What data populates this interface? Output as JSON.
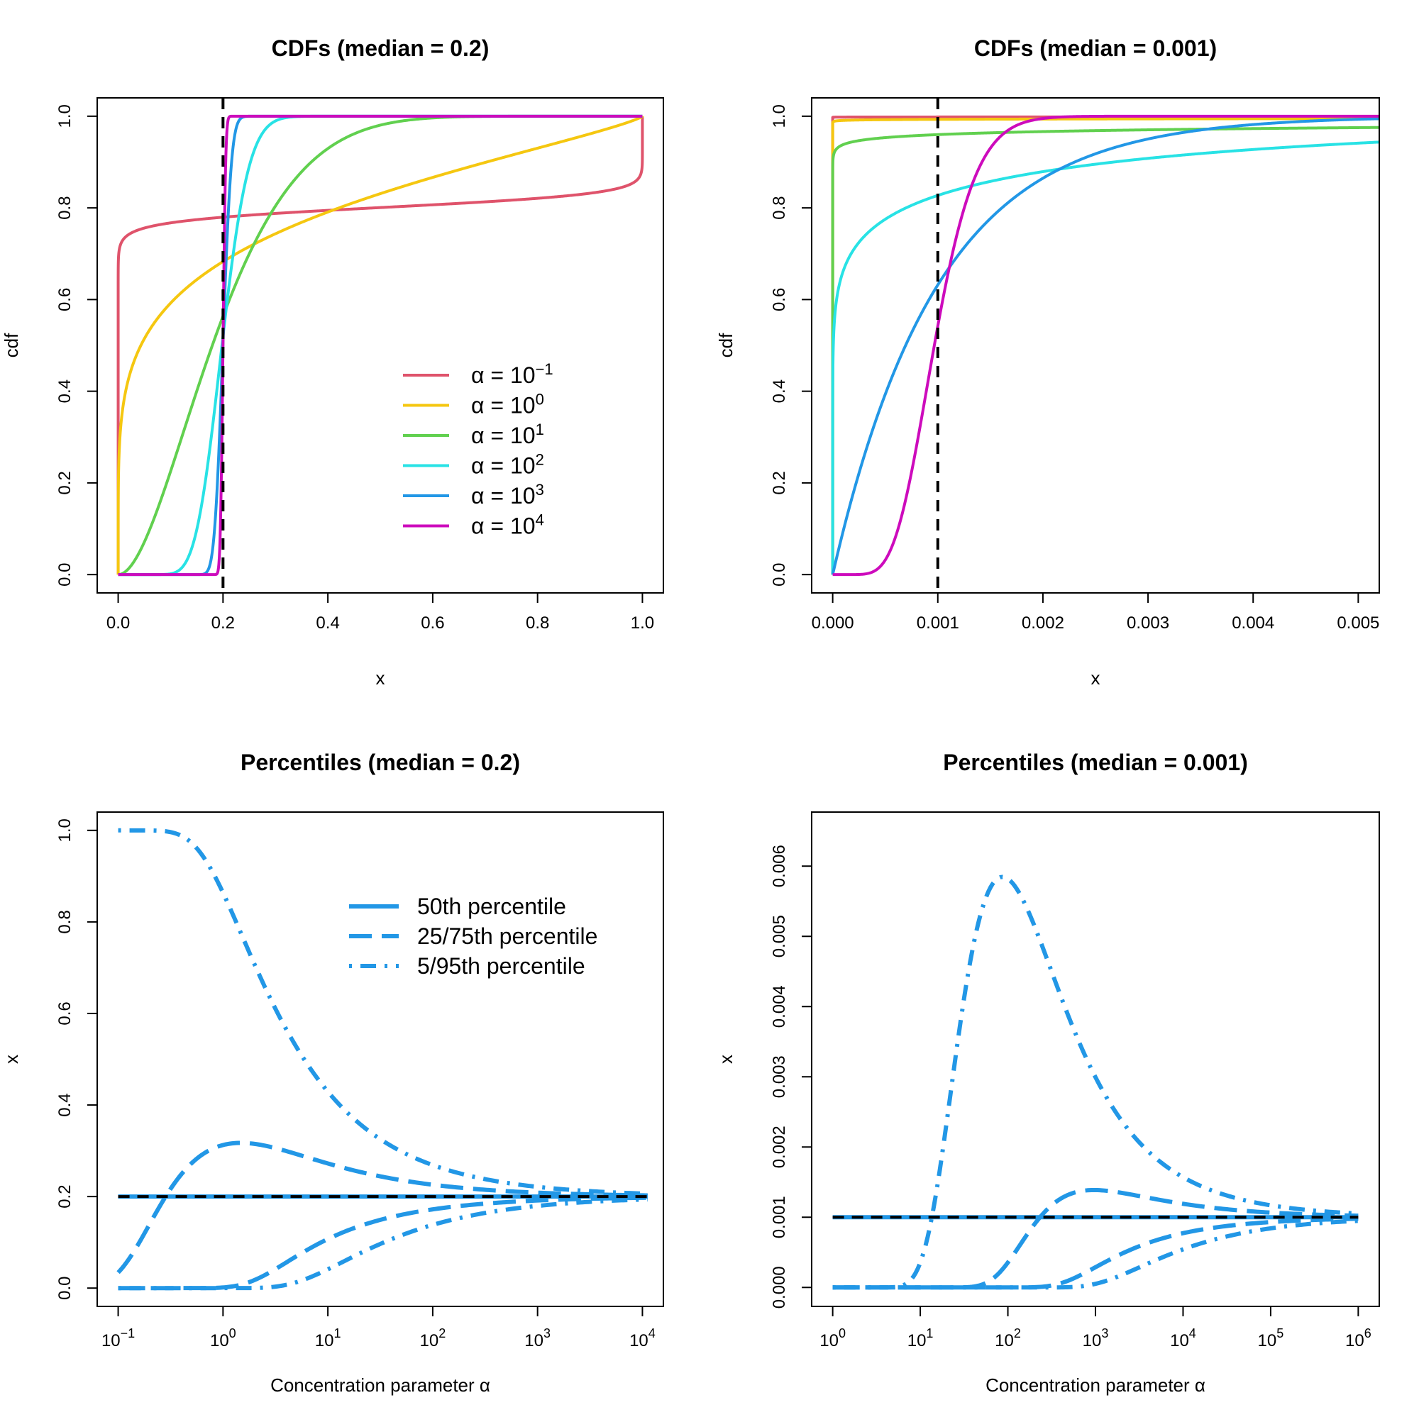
{
  "colors": {
    "a_m1": "#DF536B",
    "a_0": "#F5C710",
    "a_1": "#61D04F",
    "a_2": "#28E2E5",
    "a_3": "#2297E6",
    "a_4": "#CD0BBC",
    "black": "#000000"
  },
  "chart_data": [
    {
      "id": "p1",
      "type": "line",
      "title": "CDFs (median = 0.2)",
      "xlabel": "x",
      "ylabel": "cdf",
      "median": 0.2,
      "xlim": [
        -0.04,
        1.04
      ],
      "ylim": [
        -0.04,
        1.04
      ],
      "xticks": [
        0,
        0.2,
        0.4,
        0.6,
        0.8,
        1
      ],
      "xtick_labels": [
        "0.0",
        "0.2",
        "0.4",
        "0.6",
        "0.8",
        "1.0"
      ],
      "yticks": [
        0,
        0.2,
        0.4,
        0.6,
        0.8,
        1
      ],
      "ytick_labels": [
        "0.0",
        "0.2",
        "0.4",
        "0.6",
        "0.8",
        "1.0"
      ],
      "legend_position": "right",
      "legend": [
        {
          "base": "α = 10",
          "sup": "−1",
          "color_key": "a_m1"
        },
        {
          "base": "α = 10",
          "sup": "0",
          "color_key": "a_0"
        },
        {
          "base": "α = 10",
          "sup": "1",
          "color_key": "a_1"
        },
        {
          "base": "α = 10",
          "sup": "2",
          "color_key": "a_2"
        },
        {
          "base": "α = 10",
          "sup": "3",
          "color_key": "a_3"
        },
        {
          "base": "α = 10",
          "sup": "4",
          "color_key": "a_4"
        }
      ],
      "series": [
        {
          "name": "α = 10^-1",
          "alpha": 0.1,
          "color_key": "a_m1"
        },
        {
          "name": "α = 10^0",
          "alpha": 1,
          "color_key": "a_0"
        },
        {
          "name": "α = 10^1",
          "alpha": 10,
          "color_key": "a_1"
        },
        {
          "name": "α = 10^2",
          "alpha": 100,
          "color_key": "a_2"
        },
        {
          "name": "α = 10^3",
          "alpha": 1000,
          "color_key": "a_3"
        },
        {
          "name": "α = 10^4",
          "alpha": 10000,
          "color_key": "a_4"
        }
      ]
    },
    {
      "id": "p2",
      "type": "line",
      "title": "CDFs (median = 0.001)",
      "xlabel": "x",
      "ylabel": "cdf",
      "median": 0.001,
      "xlim": [
        -0.0002,
        0.0052
      ],
      "ylim": [
        -0.04,
        1.04
      ],
      "xticks": [
        0,
        0.001,
        0.002,
        0.003,
        0.004,
        0.005
      ],
      "xtick_labels": [
        "0.000",
        "0.001",
        "0.002",
        "0.003",
        "0.004",
        "0.005"
      ],
      "yticks": [
        0,
        0.2,
        0.4,
        0.6,
        0.8,
        1
      ],
      "ytick_labels": [
        "0.0",
        "0.2",
        "0.4",
        "0.6",
        "0.8",
        "1.0"
      ],
      "series": [
        {
          "name": "α = 10^-1",
          "alpha": 0.1,
          "color_key": "a_m1"
        },
        {
          "name": "α = 10^0",
          "alpha": 1,
          "color_key": "a_0"
        },
        {
          "name": "α = 10^1",
          "alpha": 10,
          "color_key": "a_1"
        },
        {
          "name": "α = 10^2",
          "alpha": 100,
          "color_key": "a_2"
        },
        {
          "name": "α = 10^3",
          "alpha": 1000,
          "color_key": "a_3"
        },
        {
          "name": "α = 10^4",
          "alpha": 10000,
          "color_key": "a_4"
        }
      ]
    },
    {
      "id": "p3",
      "type": "line",
      "title": "Percentiles (median = 0.2)",
      "xlabel": "Concentration parameter α",
      "ylabel": "x",
      "median": 0.2,
      "xscale": "log10",
      "xlim_log10": [
        -1.2,
        4.2
      ],
      "alpha_log10_range": [
        -1,
        4.05
      ],
      "ylim": [
        -0.04,
        1.04
      ],
      "xticks_log10": [
        -1,
        0,
        1,
        2,
        3,
        4
      ],
      "xtick_labels": [
        {
          "base": "10",
          "sup": "−1"
        },
        {
          "base": "10",
          "sup": "0"
        },
        {
          "base": "10",
          "sup": "1"
        },
        {
          "base": "10",
          "sup": "2"
        },
        {
          "base": "10",
          "sup": "3"
        },
        {
          "base": "10",
          "sup": "4"
        }
      ],
      "yticks": [
        0,
        0.2,
        0.4,
        0.6,
        0.8,
        1
      ],
      "ytick_labels": [
        "0.0",
        "0.2",
        "0.4",
        "0.6",
        "0.8",
        "1.0"
      ],
      "legend_position": "top-right",
      "legend": [
        {
          "label": "50th percentile",
          "style": "solid"
        },
        {
          "label": "25/75th percentile",
          "style": "dashed"
        },
        {
          "label": "5/95th percentile",
          "style": "dotdash"
        }
      ],
      "series": [
        {
          "name": "50th percentile",
          "percentiles": [
            0.5
          ],
          "style": "solid"
        },
        {
          "name": "25/75th percentile",
          "percentiles": [
            0.25,
            0.75
          ],
          "style": "dashed"
        },
        {
          "name": "5/95th percentile",
          "percentiles": [
            0.05,
            0.95
          ],
          "style": "dotdash"
        }
      ],
      "color_key": "a_3"
    },
    {
      "id": "p4",
      "type": "line",
      "title": "Percentiles (median = 0.001)",
      "xlabel": "Concentration parameter α",
      "ylabel": "x",
      "median": 0.001,
      "xscale": "log10",
      "xlim_log10": [
        -0.24,
        6.24
      ],
      "alpha_log10_range": [
        0,
        6
      ],
      "ylim": [
        -0.00027,
        0.00677
      ],
      "xticks_log10": [
        0,
        1,
        2,
        3,
        4,
        5,
        6
      ],
      "xtick_labels": [
        {
          "base": "10",
          "sup": "0"
        },
        {
          "base": "10",
          "sup": "1"
        },
        {
          "base": "10",
          "sup": "2"
        },
        {
          "base": "10",
          "sup": "3"
        },
        {
          "base": "10",
          "sup": "4"
        },
        {
          "base": "10",
          "sup": "5"
        },
        {
          "base": "10",
          "sup": "6"
        }
      ],
      "yticks": [
        0,
        0.001,
        0.002,
        0.003,
        0.004,
        0.005,
        0.006
      ],
      "ytick_labels": [
        "0.000",
        "0.001",
        "0.002",
        "0.003",
        "0.004",
        "0.005",
        "0.006"
      ],
      "series": [
        {
          "name": "50th percentile",
          "percentiles": [
            0.5
          ],
          "style": "solid"
        },
        {
          "name": "25/75th percentile",
          "percentiles": [
            0.25,
            0.75
          ],
          "style": "dashed"
        },
        {
          "name": "5/95th percentile",
          "percentiles": [
            0.05,
            0.95
          ],
          "style": "dotdash"
        }
      ],
      "color_key": "a_3"
    }
  ]
}
